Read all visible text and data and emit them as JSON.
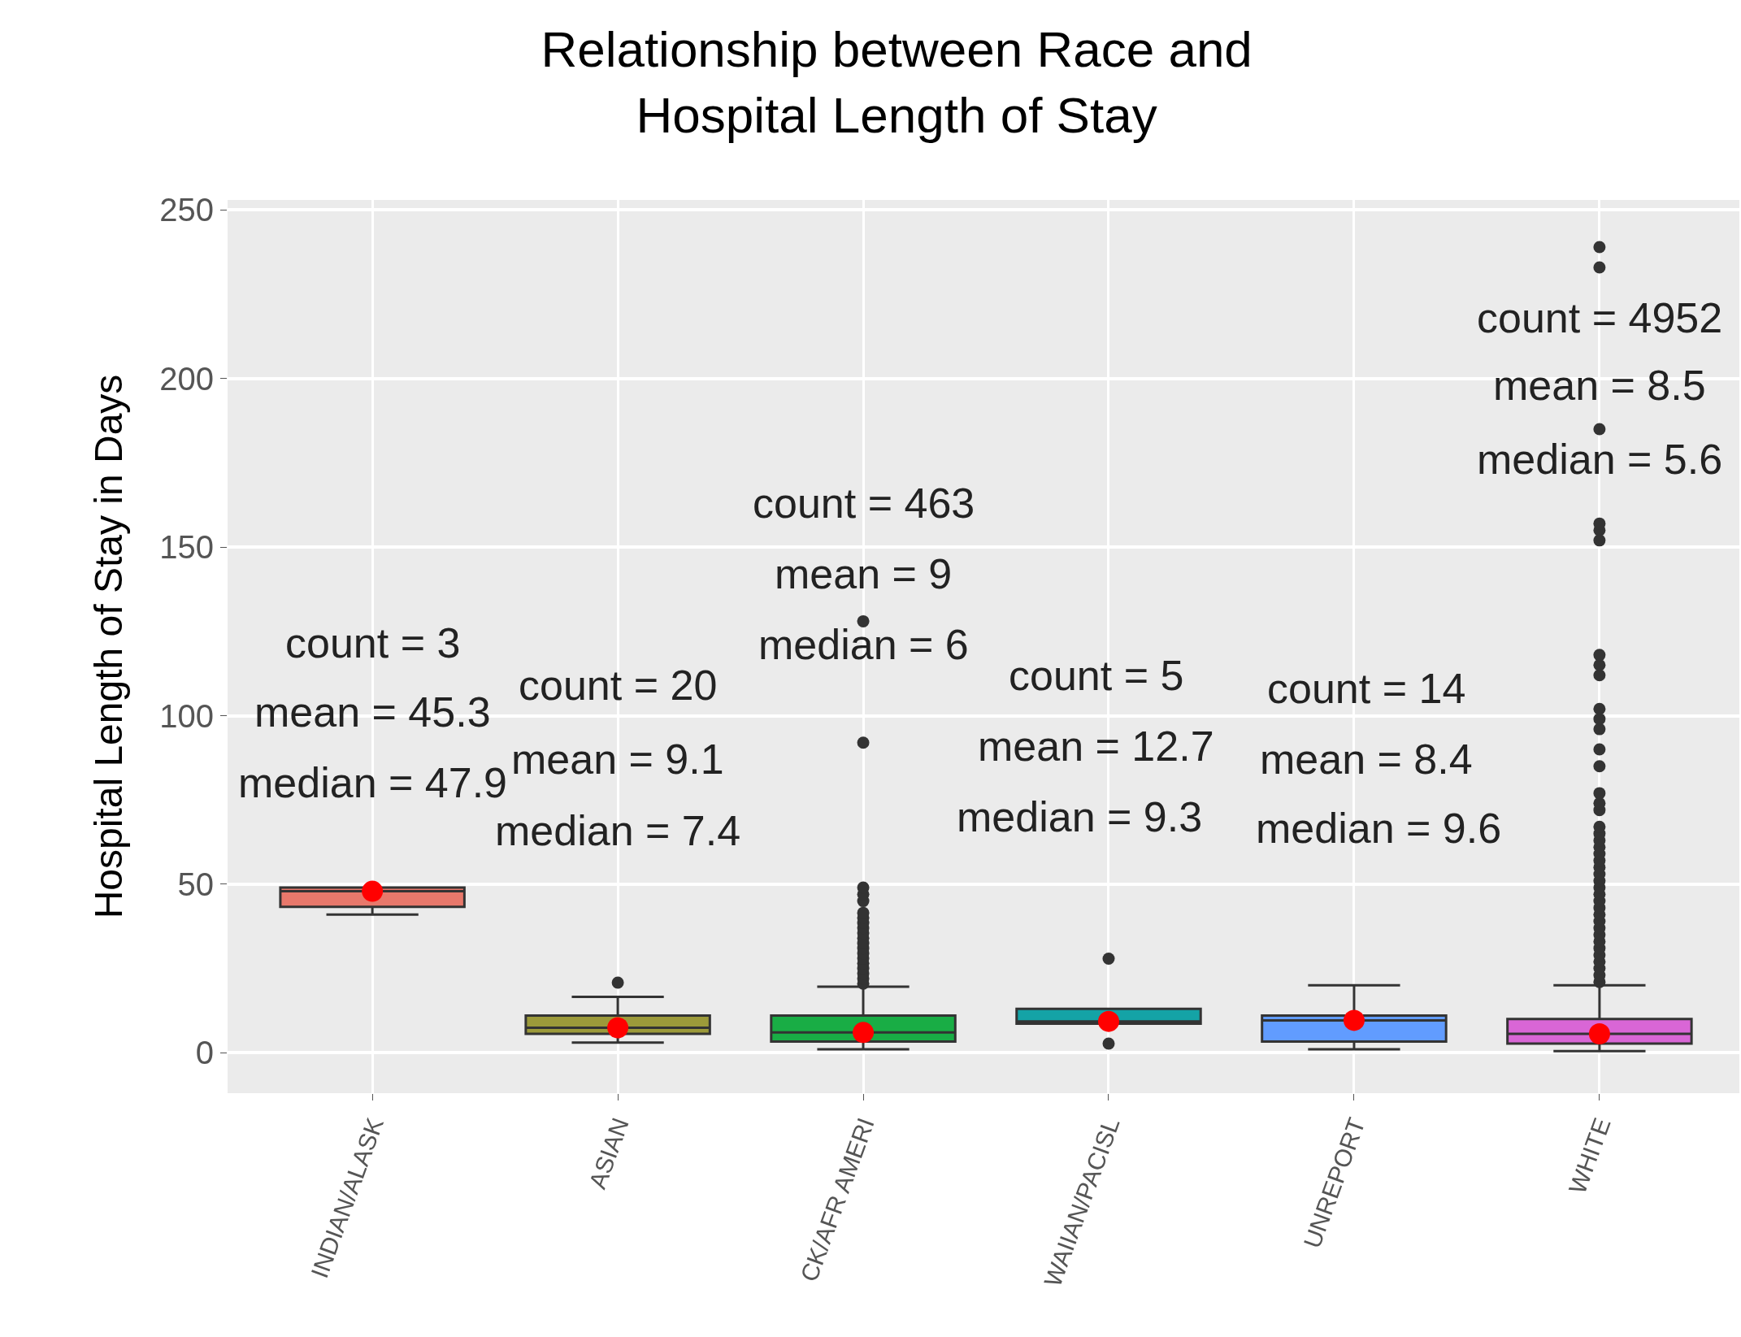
{
  "chart_data": {
    "type": "box",
    "title": "Relationship between Race and\nHospital Length of Stay",
    "ylabel": "Hospital Length of Stay in Days",
    "categories": [
      "INDIAN/ALASK",
      "ASIAN",
      "CK/AFR AMERI",
      "WAIIAN/PACISL",
      "UNREPORT",
      "WHITE"
    ],
    "ylim": [
      -12,
      253
    ],
    "yticks": [
      0,
      50,
      100,
      150,
      200,
      250
    ],
    "grid": true,
    "series": [
      {
        "colors": [
          "#e8786b",
          "#9c9a3a",
          "#19ad45",
          "#14a3a6",
          "#619cff",
          "#d966d6"
        ],
        "boxes": [
          {
            "low": 41,
            "q1": 43.3,
            "median": 47.9,
            "q3": 49,
            "high": 49
          },
          {
            "low": 3,
            "q1": 5.6,
            "median": 7.4,
            "q3": 11,
            "high": 16.6,
            "outliers": [
              20.8
            ]
          },
          {
            "low": 1,
            "q1": 3.3,
            "median": 6,
            "q3": 11,
            "high": 19.6,
            "outliers": [
              20.5,
              22,
              23.5,
              25,
              26.5,
              28,
              29.5,
              31,
              32.5,
              34,
              35.5,
              37,
              38.5,
              40,
              41.5,
              45,
              47,
              49,
              92,
              128
            ]
          },
          {
            "low": 8.6,
            "q1": 8.6,
            "median": 9.3,
            "q3": 13,
            "high": 13,
            "outliers": [
              2.7,
              27.9
            ]
          },
          {
            "low": 1,
            "q1": 3.3,
            "median": 9.6,
            "q3": 11,
            "high": 20
          },
          {
            "low": 0.5,
            "q1": 2.7,
            "median": 5.6,
            "q3": 10,
            "high": 20,
            "outliers": [
              21,
              23,
              25,
              27,
              29,
              31,
              33,
              35,
              37,
              39,
              41,
              43,
              45,
              47,
              49,
              51,
              53,
              55,
              57,
              59,
              61,
              63,
              65,
              67,
              72,
              74,
              77,
              85,
              90,
              96,
              99,
              102,
              112,
              115,
              118,
              152,
              155,
              157,
              185,
              233,
              239
            ]
          }
        ]
      },
      {
        "type": "scatter",
        "x": [
          "INDIAN/ALASK",
          "ASIAN",
          "CK/AFR AMERI",
          "WAIIAN/PACISL",
          "UNREPORT",
          "WHITE"
        ],
        "values": [
          47.9,
          7.4,
          6,
          9.3,
          9.6,
          5.6
        ],
        "color": "#ff0000",
        "marker": "circle"
      }
    ],
    "annotations": [
      "count = 3",
      "mean = 45.3",
      "median = 47.9",
      "count = 20",
      "mean = 9.1",
      "median = 7.4",
      "count = 463",
      "mean = 9",
      "median = 6",
      "count = 5",
      "mean = 12.7",
      "median = 9.3",
      "count = 14",
      "mean = 8.4",
      "median = 9.6",
      "count = 4952",
      "mean = 8.5",
      "median = 5.6"
    ]
  }
}
